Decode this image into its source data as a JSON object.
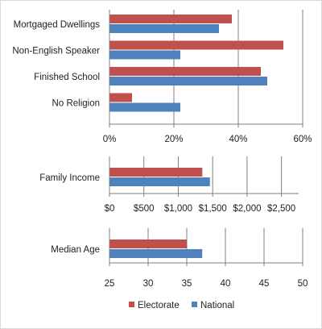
{
  "colors": {
    "electorate": "#c0504d",
    "national": "#4f81bd",
    "grid": "#7f7f7f",
    "axis": "#7f7f7f"
  },
  "legend": {
    "electorate": "Electorate",
    "national": "National"
  },
  "chart_data": [
    {
      "type": "bar",
      "orientation": "horizontal",
      "categories": [
        "Mortgaged Dwellings",
        "Non-English Speaker",
        "Finished School",
        "No Religion"
      ],
      "series": [
        {
          "name": "Electorate",
          "values": [
            38,
            54,
            47,
            7
          ]
        },
        {
          "name": "National",
          "values": [
            34,
            22,
            49,
            22
          ]
        }
      ],
      "xlim": [
        0,
        60
      ],
      "xticks": [
        "0%",
        "20%",
        "40%",
        "60%"
      ],
      "grid": true
    },
    {
      "type": "bar",
      "orientation": "horizontal",
      "categories": [
        "Family Income"
      ],
      "series": [
        {
          "name": "Electorate",
          "values": [
            1350
          ]
        },
        {
          "name": "National",
          "values": [
            1460
          ]
        }
      ],
      "xlim": [
        0,
        2750
      ],
      "xticks": [
        "$0",
        "$500",
        "$1,000",
        "$1,500",
        "$2,000",
        "$2,500"
      ],
      "grid": true
    },
    {
      "type": "bar",
      "orientation": "horizontal",
      "categories": [
        "Median Age"
      ],
      "series": [
        {
          "name": "Electorate",
          "values": [
            35
          ]
        },
        {
          "name": "National",
          "values": [
            37
          ]
        }
      ],
      "xlim": [
        25,
        50
      ],
      "xticks": [
        "25",
        "30",
        "35",
        "40",
        "45",
        "50"
      ],
      "grid": true
    }
  ]
}
